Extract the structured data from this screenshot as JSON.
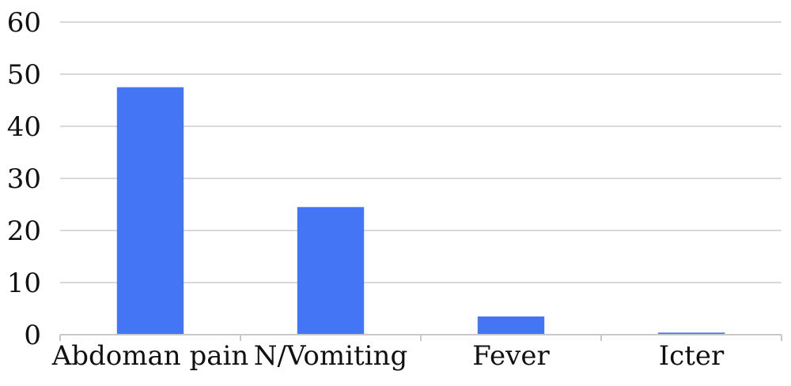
{
  "chart_data": {
    "type": "bar",
    "categories": [
      "Abdoman pain",
      "N/Vomiting",
      "Fever",
      "Icter"
    ],
    "values": [
      47.5,
      24.5,
      3.5,
      0.4
    ],
    "ylim": [
      0,
      60
    ],
    "yticks": [
      "0",
      "10",
      "20",
      "30",
      "40",
      "50",
      "60"
    ],
    "grid": true,
    "bar_color": "#4475f4",
    "title": "",
    "xlabel": "",
    "ylabel": ""
  }
}
